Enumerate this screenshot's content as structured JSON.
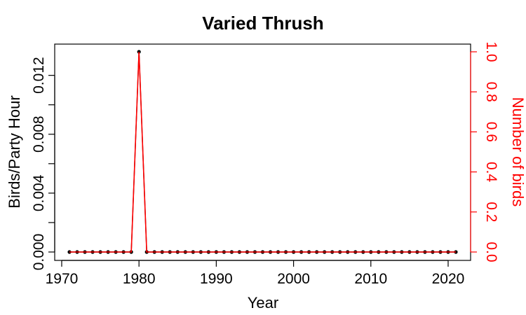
{
  "chart_data": {
    "type": "line",
    "title": "Varied Thrush",
    "xlabel": "Year",
    "ylabel": "Birds/Party Hour",
    "y2label": "Number of birds",
    "xlim": [
      1970,
      2022
    ],
    "ylim": [
      0,
      0.0136
    ],
    "y2lim": [
      0,
      1.0
    ],
    "xticks": [
      "1970",
      "1980",
      "1990",
      "2000",
      "2010",
      "2020"
    ],
    "yticks": [
      "0.000",
      "0.004",
      "0.008",
      "0.012"
    ],
    "y2ticks": [
      "0.0",
      "0.2",
      "0.4",
      "0.6",
      "0.8",
      "1.0"
    ],
    "colors": {
      "primary": "#000000",
      "secondary": "#ff0000"
    },
    "series": [
      {
        "axis": "left",
        "color": "#000000",
        "x": [
          1971,
          1972,
          1973,
          1974,
          1975,
          1976,
          1977,
          1978,
          1979,
          1980,
          1981,
          1982,
          1983,
          1984,
          1985,
          1986,
          1987,
          1988,
          1989,
          1990,
          1991,
          1992,
          1993,
          1994,
          1995,
          1996,
          1997,
          1998,
          1999,
          2000,
          2001,
          2002,
          2003,
          2004,
          2005,
          2006,
          2007,
          2008,
          2009,
          2010,
          2011,
          2012,
          2013,
          2014,
          2015,
          2016,
          2017,
          2018,
          2019,
          2020,
          2021
        ],
        "values": [
          0,
          0,
          0,
          0,
          0,
          0,
          0,
          0,
          0,
          0.0136,
          0,
          0,
          0,
          0,
          0,
          0,
          0,
          0,
          0,
          0,
          0,
          0,
          0,
          0,
          0,
          0,
          0,
          0,
          0,
          0,
          0,
          0,
          0,
          0,
          0,
          0,
          0,
          0,
          0,
          0,
          0,
          0,
          0,
          0,
          0,
          0,
          0,
          0,
          0,
          0,
          0
        ]
      },
      {
        "axis": "right",
        "color": "#ff0000",
        "x": [
          1971,
          1972,
          1973,
          1974,
          1975,
          1976,
          1977,
          1978,
          1979,
          1980,
          1981,
          1982,
          1983,
          1984,
          1985,
          1986,
          1987,
          1988,
          1989,
          1990,
          1991,
          1992,
          1993,
          1994,
          1995,
          1996,
          1997,
          1998,
          1999,
          2000,
          2001,
          2002,
          2003,
          2004,
          2005,
          2006,
          2007,
          2008,
          2009,
          2010,
          2011,
          2012,
          2013,
          2014,
          2015,
          2016,
          2017,
          2018,
          2019,
          2020,
          2021
        ],
        "values": [
          0,
          0,
          0,
          0,
          0,
          0,
          0,
          0,
          0,
          1,
          0,
          0,
          0,
          0,
          0,
          0,
          0,
          0,
          0,
          0,
          0,
          0,
          0,
          0,
          0,
          0,
          0,
          0,
          0,
          0,
          0,
          0,
          0,
          0,
          0,
          0,
          0,
          0,
          0,
          0,
          0,
          0,
          0,
          0,
          0,
          0,
          0,
          0,
          0,
          0,
          0
        ]
      }
    ]
  }
}
